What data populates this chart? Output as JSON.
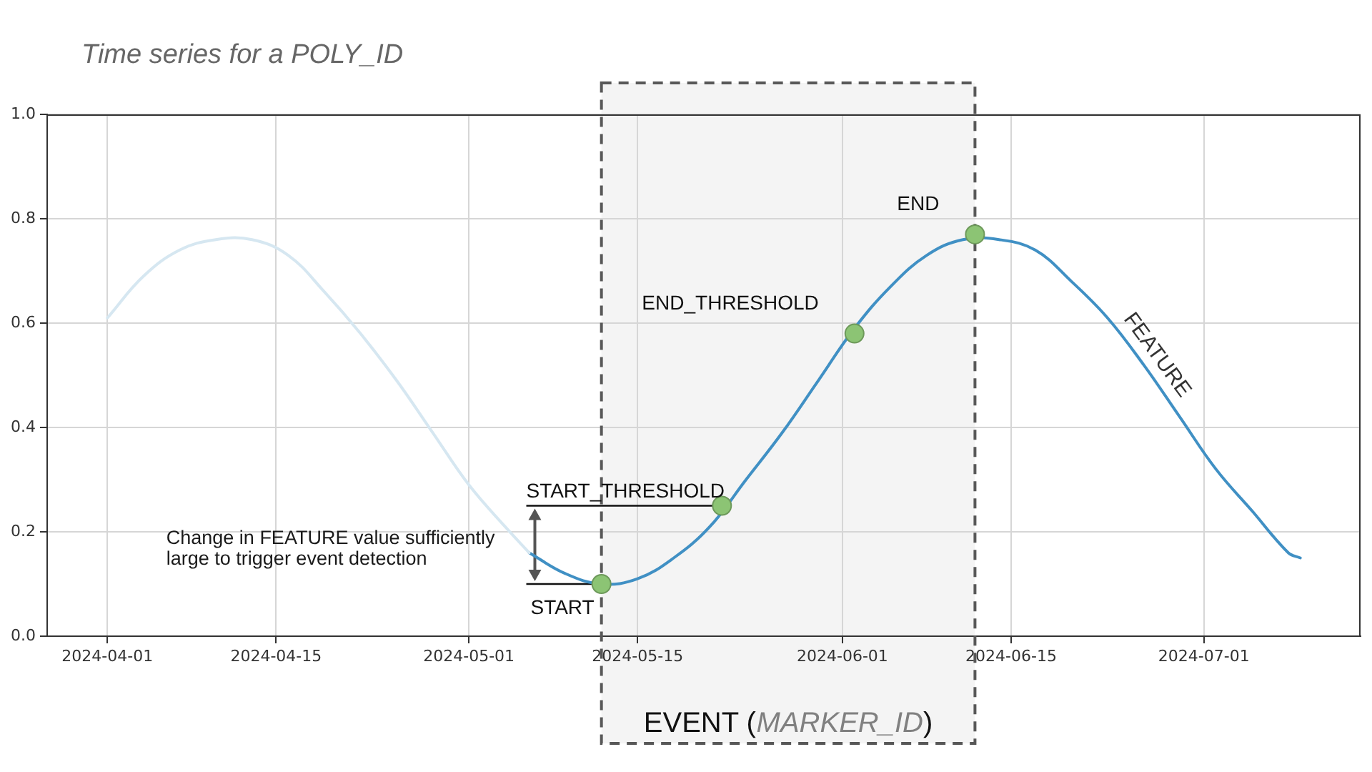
{
  "chart_data": {
    "type": "line",
    "title": "Time series for a POLY_ID",
    "xlim": [
      "2024-03-27",
      "2024-07-14"
    ],
    "xticks": [
      "2024-04-01",
      "2024-04-15",
      "2024-05-01",
      "2024-05-15",
      "2024-06-01",
      "2024-06-15",
      "2024-07-01"
    ],
    "ylim": [
      0,
      1
    ],
    "yticks": [
      {
        "value": 0,
        "label": "0.0"
      },
      0.2,
      0.4,
      0.6,
      0.8,
      {
        "value": 1,
        "label": "1.0"
      }
    ],
    "grid": true,
    "legend": false,
    "series": [
      {
        "color": "#d6e7f1",
        "x": [
          "2024-04-01",
          "2024-04-04",
          "2024-04-07",
          "2024-04-10",
          "2024-04-13",
          "2024-04-16",
          "2024-04-19",
          "2024-04-22",
          "2024-04-25",
          "2024-04-28",
          "2024-05-01",
          "2024-05-04",
          "2024-05-06"
        ],
        "values": [
          0.61,
          0.69,
          0.74,
          0.76,
          0.76,
          0.73,
          0.66,
          0.58,
          0.49,
          0.39,
          0.29,
          0.21,
          0.16
        ]
      },
      {
        "name": "FEATURE",
        "color": "#4090c4",
        "x": [
          "2024-05-06",
          "2024-05-09",
          "2024-05-12",
          "2024-05-15",
          "2024-05-18",
          "2024-05-21",
          "2024-05-24",
          "2024-05-27",
          "2024-05-30",
          "2024-06-02",
          "2024-06-05",
          "2024-06-08",
          "2024-06-11",
          "2024-06-14",
          "2024-06-17",
          "2024-06-20",
          "2024-06-23",
          "2024-06-26",
          "2024-06-29",
          "2024-07-02",
          "2024-07-05",
          "2024-07-08",
          "2024-07-09"
        ],
        "values": [
          0.16,
          0.12,
          0.1,
          0.11,
          0.15,
          0.21,
          0.3,
          0.39,
          0.49,
          0.59,
          0.67,
          0.73,
          0.76,
          0.76,
          0.74,
          0.68,
          0.61,
          0.52,
          0.42,
          0.32,
          0.24,
          0.16,
          0.15
        ]
      },
      {
        "type": "scatter",
        "color": "#8cc474",
        "marker": "circle",
        "x": [
          "2024-05-12",
          "2024-05-22",
          "2024-06-02",
          "2024-06-12"
        ],
        "values": [
          0.1,
          0.25,
          0.58,
          0.77
        ]
      }
    ],
    "annotations": [
      {
        "text": "Change in FEATURE value sufficiently large to trigger event detection",
        "x": "2024-05-06",
        "y": 0.175
      },
      {
        "text": "START",
        "x": "2024-05-12",
        "y": 0.1
      },
      {
        "text": "START_THRESHOLD",
        "x": "2024-05-22",
        "y": 0.25
      },
      {
        "text": "END_THRESHOLD",
        "x": "2024-06-02",
        "y": 0.58
      },
      {
        "text": "END",
        "x": "2024-06-12",
        "y": 0.77
      }
    ],
    "bands": [
      {
        "axis": "x",
        "from": "2024-05-12",
        "to": "2024-06-12",
        "label": "EVENT (MARKER_ID)",
        "color": "#f4f4f4"
      }
    ]
  }
}
